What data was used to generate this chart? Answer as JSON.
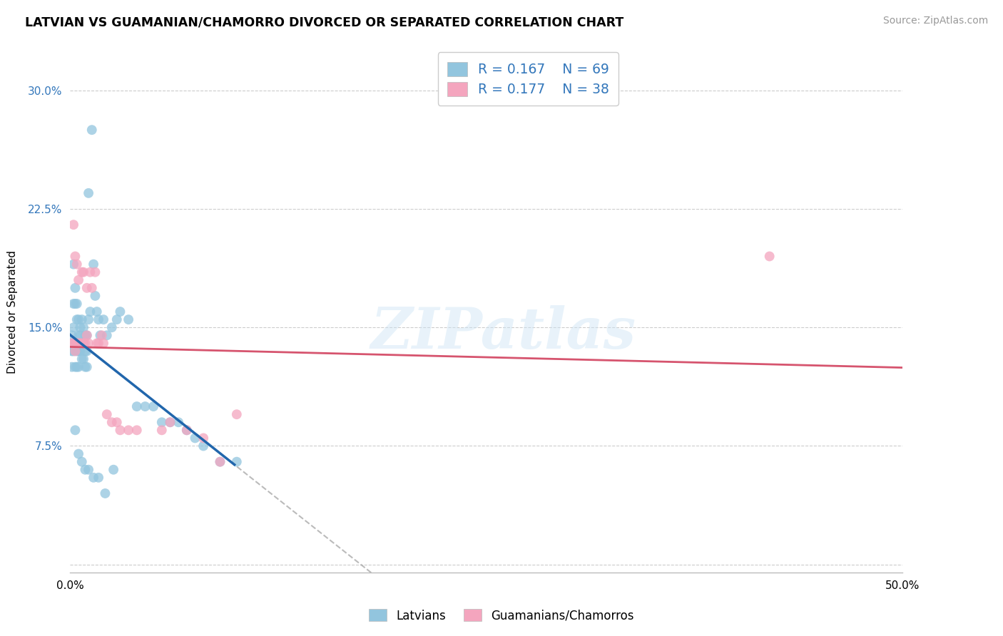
{
  "title": "LATVIAN VS GUAMANIAN/CHAMORRO DIVORCED OR SEPARATED CORRELATION CHART",
  "source": "Source: ZipAtlas.com",
  "ylabel": "Divorced or Separated",
  "xlim": [
    0,
    0.5
  ],
  "ylim": [
    -0.005,
    0.325
  ],
  "blue_color": "#92c5de",
  "pink_color": "#f4a5be",
  "blue_line_color": "#2166ac",
  "pink_line_color": "#d6546e",
  "grey_dash_color": "#aaaaaa",
  "watermark": "ZIPatlas",
  "latvian_x": [
    0.001,
    0.001,
    0.001,
    0.002,
    0.002,
    0.002,
    0.002,
    0.003,
    0.003,
    0.003,
    0.003,
    0.004,
    0.004,
    0.004,
    0.004,
    0.005,
    0.005,
    0.005,
    0.005,
    0.006,
    0.006,
    0.006,
    0.007,
    0.007,
    0.007,
    0.008,
    0.008,
    0.008,
    0.009,
    0.009,
    0.009,
    0.01,
    0.01,
    0.01,
    0.011,
    0.011,
    0.012,
    0.013,
    0.014,
    0.015,
    0.016,
    0.017,
    0.018,
    0.02,
    0.022,
    0.025,
    0.028,
    0.03,
    0.035,
    0.04,
    0.045,
    0.05,
    0.055,
    0.06,
    0.065,
    0.07,
    0.075,
    0.08,
    0.09,
    0.1,
    0.003,
    0.005,
    0.007,
    0.009,
    0.011,
    0.014,
    0.017,
    0.021,
    0.026
  ],
  "latvian_y": [
    0.135,
    0.145,
    0.125,
    0.165,
    0.19,
    0.15,
    0.135,
    0.175,
    0.165,
    0.14,
    0.125,
    0.155,
    0.165,
    0.135,
    0.125,
    0.155,
    0.145,
    0.135,
    0.125,
    0.15,
    0.145,
    0.135,
    0.155,
    0.14,
    0.13,
    0.15,
    0.14,
    0.13,
    0.145,
    0.135,
    0.125,
    0.145,
    0.135,
    0.125,
    0.235,
    0.155,
    0.16,
    0.275,
    0.19,
    0.17,
    0.16,
    0.155,
    0.145,
    0.155,
    0.145,
    0.15,
    0.155,
    0.16,
    0.155,
    0.1,
    0.1,
    0.1,
    0.09,
    0.09,
    0.09,
    0.085,
    0.08,
    0.075,
    0.065,
    0.065,
    0.085,
    0.07,
    0.065,
    0.06,
    0.06,
    0.055,
    0.055,
    0.045,
    0.06
  ],
  "guam_x": [
    0.001,
    0.002,
    0.002,
    0.003,
    0.003,
    0.004,
    0.004,
    0.005,
    0.005,
    0.006,
    0.007,
    0.007,
    0.008,
    0.008,
    0.009,
    0.01,
    0.01,
    0.011,
    0.012,
    0.013,
    0.015,
    0.016,
    0.017,
    0.019,
    0.02,
    0.022,
    0.025,
    0.028,
    0.03,
    0.035,
    0.04,
    0.055,
    0.06,
    0.07,
    0.08,
    0.09,
    0.42,
    0.1
  ],
  "guam_y": [
    0.14,
    0.215,
    0.14,
    0.195,
    0.135,
    0.19,
    0.14,
    0.18,
    0.14,
    0.14,
    0.185,
    0.14,
    0.185,
    0.14,
    0.14,
    0.175,
    0.145,
    0.14,
    0.185,
    0.175,
    0.185,
    0.14,
    0.14,
    0.145,
    0.14,
    0.095,
    0.09,
    0.09,
    0.085,
    0.085,
    0.085,
    0.085,
    0.09,
    0.085,
    0.08,
    0.065,
    0.195,
    0.095
  ]
}
